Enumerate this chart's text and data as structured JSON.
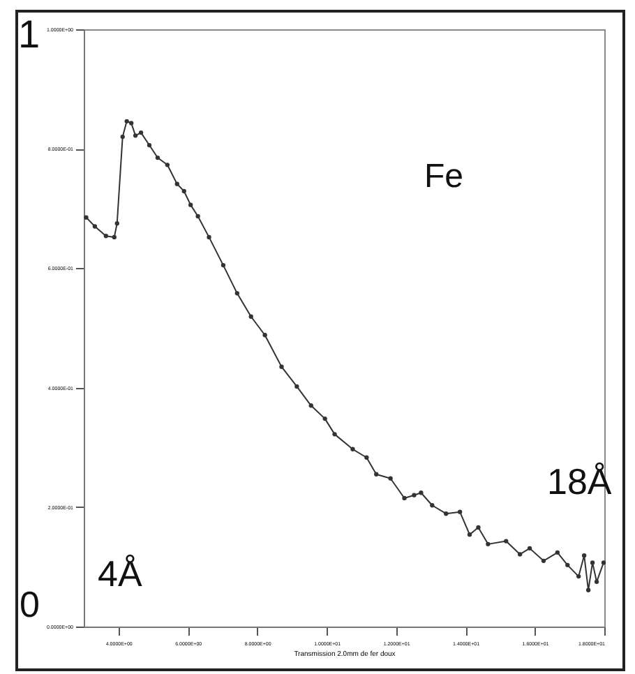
{
  "chart_data": {
    "type": "line",
    "xlabel": "Transmission 2.0mm de fer doux",
    "annotations": [
      "1",
      "0",
      "4Å",
      "18Å",
      "Fe"
    ],
    "x": [
      3.07,
      3.32,
      3.64,
      3.88,
      3.96,
      4.12,
      4.24,
      4.37,
      4.49,
      4.65,
      4.89,
      5.13,
      5.41,
      5.69,
      5.89,
      6.08,
      6.29,
      6.61,
      7.02,
      7.42,
      7.82,
      8.22,
      8.7,
      9.14,
      9.55,
      9.95,
      10.23,
      10.75,
      11.15,
      11.43,
      11.84,
      12.24,
      12.52,
      12.72,
      13.04,
      13.44,
      13.84,
      14.12,
      14.37,
      14.65,
      15.17,
      15.57,
      15.85,
      16.25,
      16.65,
      16.94,
      17.26,
      17.42,
      17.54,
      17.66,
      17.78,
      17.98
    ],
    "series": [
      {
        "color": "#333333",
        "values": [
          0.685,
          0.67,
          0.654,
          0.652,
          0.675,
          0.82,
          0.846,
          0.843,
          0.822,
          0.827,
          0.806,
          0.785,
          0.773,
          0.741,
          0.729,
          0.706,
          0.687,
          0.652,
          0.605,
          0.558,
          0.519,
          0.488,
          0.435,
          0.402,
          0.37,
          0.348,
          0.322,
          0.297,
          0.283,
          0.255,
          0.248,
          0.215,
          0.22,
          0.224,
          0.203,
          0.189,
          0.192,
          0.154,
          0.166,
          0.138,
          0.143,
          0.121,
          0.131,
          0.11,
          0.124,
          0.103,
          0.084,
          0.119,
          0.061,
          0.107,
          0.075,
          0.107
        ]
      }
    ],
    "xlim": [
      3,
      18
    ],
    "xticks": [
      {
        "value": 4,
        "label": "4.0000E+00"
      },
      {
        "value": 6,
        "label": "6.0000E+00"
      },
      {
        "value": 8,
        "label": "8.0000E+00"
      },
      {
        "value": 10,
        "label": "1.0000E+01"
      },
      {
        "value": 12,
        "label": "1.2000E+01"
      },
      {
        "value": 14,
        "label": "1.4000E+01"
      },
      {
        "value": 16,
        "label": "1.6000E+01"
      },
      {
        "value": 18,
        "label": "1.8000E+01"
      }
    ],
    "ylim": [
      0,
      1
    ],
    "yticks": [
      {
        "value": 0,
        "label": "0.0000E+00"
      },
      {
        "value": 0.2,
        "label": "2.0000E-01"
      },
      {
        "value": 0.4,
        "label": "4.0000E-01"
      },
      {
        "value": 0.6,
        "label": "6.0000E-01"
      },
      {
        "value": 0.8,
        "label": "8.0000E-01"
      },
      {
        "value": 1,
        "label": "1.0000E+00"
      }
    ],
    "grid": false,
    "marker": "circle",
    "line_style": "solid"
  }
}
